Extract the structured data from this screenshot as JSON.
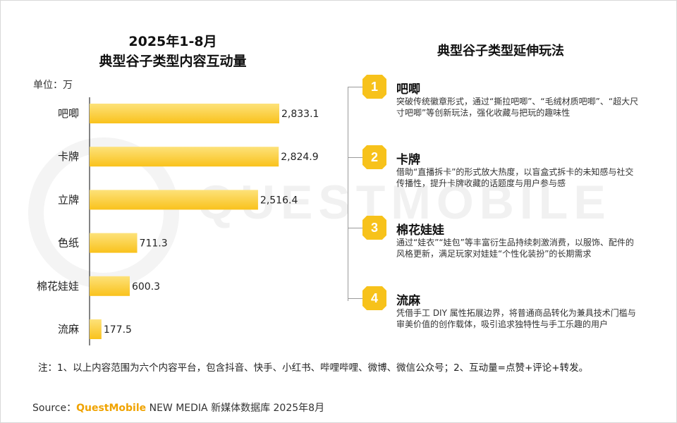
{
  "chart_data": {
    "type": "bar",
    "orientation": "horizontal",
    "title_line1": "2025年1-8月",
    "title_line2": "典型谷子类型内容互动量",
    "unit_label": "单位：万",
    "categories": [
      "吧唧",
      "卡牌",
      "立牌",
      "色纸",
      "棉花娃娃",
      "流麻"
    ],
    "values": [
      2833.1,
      2824.9,
      2516.4,
      711.3,
      600.3,
      177.5
    ],
    "value_labels": [
      "2,833.1",
      "2,824.9",
      "2,516.4",
      "711.3",
      "600.3",
      "177.5"
    ],
    "xlim": [
      0,
      3000
    ],
    "bar_color": "#f9c21c",
    "bar_color_light": "#fde27a",
    "grid": false
  },
  "right_panel": {
    "title": "典型谷子类型延伸玩法",
    "items": [
      {
        "number": "1",
        "title": "吧唧",
        "desc": "突破传统徽章形式，通过“撕拉吧唧”、“毛绒材质吧唧”、“超大尺寸吧唧”等创新玩法，强化收藏与把玩的趣味性"
      },
      {
        "number": "2",
        "title": "卡牌",
        "desc": "借助“直播拆卡”的形式放大热度，以盲盒式拆卡的未知感与社交传播性，提升卡牌收藏的话题度与用户参与感"
      },
      {
        "number": "3",
        "title": "棉花娃娃",
        "desc": "通过“娃衣”“娃包”等丰富衍生品持续刺激消费，以服饰、配件的风格更新，满足玩家对娃娃“个性化装扮”的长期需求"
      },
      {
        "number": "4",
        "title": "流麻",
        "desc": "凭借手工 DIY 属性拓展边界，将普通商品转化为兼具技术门槛与审美价值的创作载体，吸引追求独特性与手工乐趣的用户"
      }
    ],
    "badge_color": "#f7c21b"
  },
  "footer": {
    "note": "注：1、以上内容范围为六个内容平台，包含抖音、快手、小红书、哔哩哔哩、微博、微信公众号；2、互动量=点赞+评论+转发。",
    "source_prefix": "Source：",
    "source_brand": "QuestMobile",
    "source_rest": " NEW MEDIA 新媒体数据库 2025年8月"
  },
  "watermark": "QUESTMOBILE"
}
